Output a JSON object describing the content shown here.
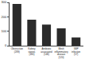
{
  "chart_data": {
    "type": "bar",
    "categories": [
      "Obstruction (289)",
      "Kidney stones (180)",
      "Antibiotic associated (146)",
      "Mesh inflammatory disease (120)",
      "SBP infection (57)"
    ],
    "values": [
      289,
      180,
      146,
      120,
      57
    ],
    "color": "#2b2b2b",
    "ylim": [
      0,
      300
    ],
    "yticks": [
      0,
      100,
      200,
      300
    ],
    "grid": false
  }
}
